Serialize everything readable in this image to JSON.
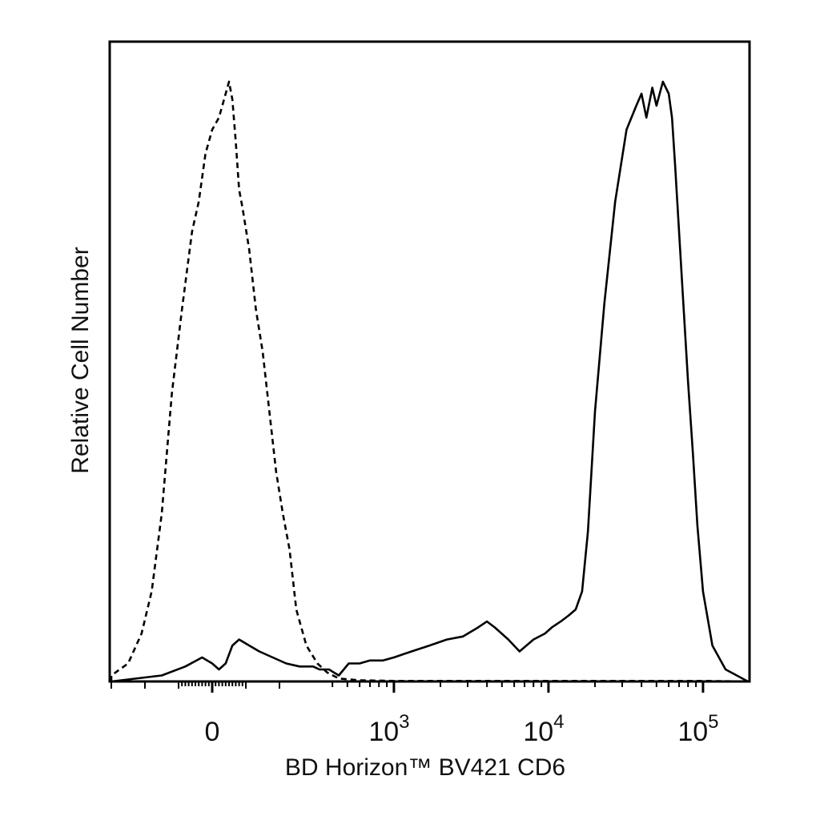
{
  "chart_data": {
    "type": "line",
    "title": "",
    "xlabel": "BD Horizon™ BV421 CD6",
    "ylabel": "Relative Cell Number",
    "x_scale": "biexponential",
    "x_ticks": [
      {
        "value": 0,
        "base": "0",
        "exp": ""
      },
      {
        "value": 1000,
        "base": "10",
        "exp": "3"
      },
      {
        "value": 10000,
        "base": "10",
        "exp": "4"
      },
      {
        "value": 100000,
        "base": "10",
        "exp": "5"
      }
    ],
    "xlim": [
      -450,
      250000
    ],
    "ylim": [
      0,
      100
    ],
    "grid": false,
    "legend": "none",
    "series": [
      {
        "style": "dashed",
        "x": [
          -390,
          -300,
          -250,
          -210,
          -180,
          -150,
          -120,
          -90,
          -60,
          -40,
          -20,
          0,
          20,
          35,
          50,
          60,
          70,
          80,
          90,
          110,
          130,
          150,
          170,
          190,
          210,
          230,
          250,
          280,
          320,
          370,
          440,
          600,
          1000,
          5000,
          100000,
          200000
        ],
        "values": [
          0,
          1,
          3,
          8,
          15,
          28,
          48,
          62,
          75,
          80,
          88,
          92,
          94,
          97,
          100,
          97,
          90,
          82,
          79,
          72,
          62,
          55,
          45,
          35,
          28,
          22,
          12,
          6,
          3,
          1.5,
          0.5,
          0.2,
          0.1,
          0.1,
          0.1,
          0
        ]
      },
      {
        "style": "solid",
        "x": [
          -390,
          -150,
          -80,
          -30,
          0,
          20,
          40,
          60,
          80,
          110,
          140,
          180,
          220,
          260,
          300,
          330,
          380,
          440,
          510,
          600,
          700,
          850,
          1000,
          1300,
          1700,
          2200,
          2800,
          3500,
          4000,
          4500,
          5500,
          6500,
          8000,
          9500,
          10500,
          12000,
          13500,
          15000,
          16500,
          18000,
          20000,
          23000,
          27000,
          32000,
          37000,
          40000,
          43000,
          47000,
          50000,
          55000,
          60000,
          63000,
          66000,
          70000,
          75000,
          80000,
          86000,
          92000,
          100000,
          115000,
          140000,
          200000
        ],
        "values": [
          0,
          1,
          2.5,
          4,
          3,
          2,
          3,
          6,
          7,
          6,
          5,
          4,
          3,
          2.5,
          2.5,
          2,
          2,
          1,
          3,
          3,
          3.5,
          3.5,
          4,
          5,
          6,
          7,
          7.5,
          9,
          10,
          9,
          7,
          5,
          7,
          8,
          9,
          10,
          11,
          12,
          15,
          25,
          45,
          63,
          80,
          92,
          96,
          98,
          94,
          99,
          96,
          100,
          98,
          94,
          86,
          75,
          62,
          50,
          38,
          26,
          15,
          6,
          2,
          0
        ]
      }
    ]
  }
}
